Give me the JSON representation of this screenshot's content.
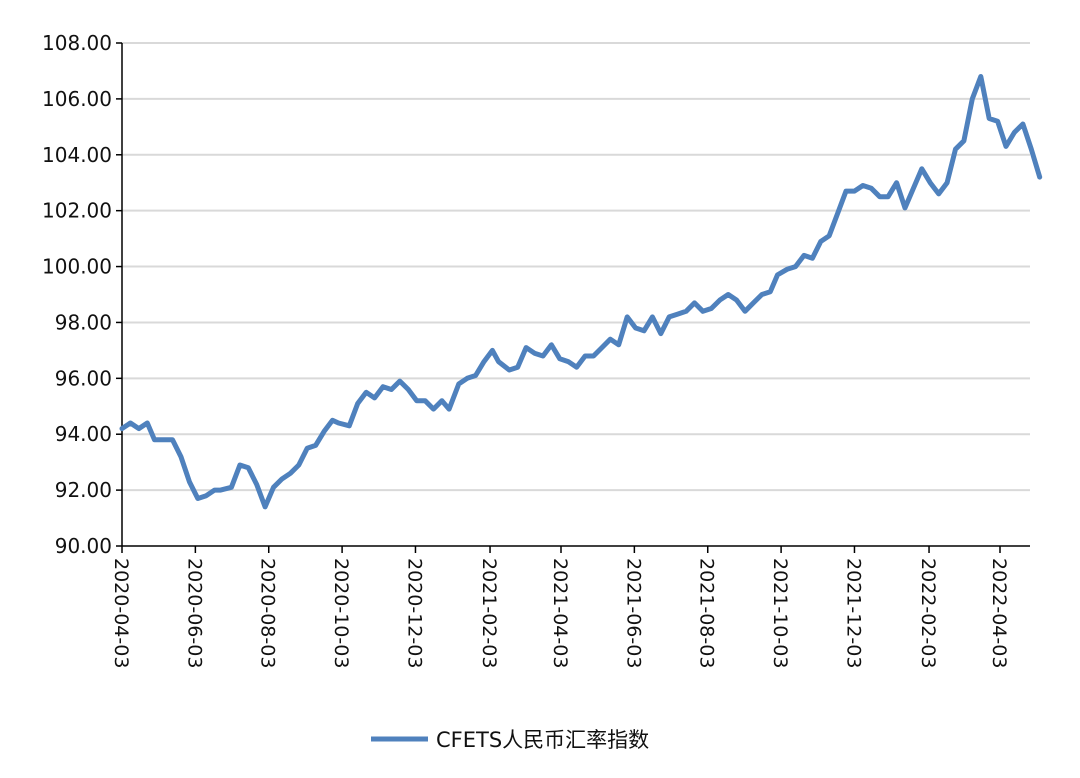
{
  "chart_data": {
    "type": "line",
    "title": "",
    "xlabel": "",
    "ylabel": "",
    "ylim": [
      90,
      108
    ],
    "y_ticks": [
      "90.00",
      "92.00",
      "94.00",
      "96.00",
      "98.00",
      "100.00",
      "102.00",
      "104.00",
      "106.00",
      "108.00"
    ],
    "x_ticks": [
      "2020-04-03",
      "2020-06-03",
      "2020-08-03",
      "2020-10-03",
      "2020-12-03",
      "2021-02-03",
      "2021-04-03",
      "2021-06-03",
      "2021-08-03",
      "2021-10-03",
      "2021-12-03",
      "2022-02-03",
      "2022-04-03"
    ],
    "grid": "horizontal",
    "legend_position": "bottom-center",
    "series": [
      {
        "name": "CFETS人民币汇率指数",
        "color": "#4f81bd",
        "x": [
          "2020-04-03",
          "2020-04-10",
          "2020-04-17",
          "2020-04-24",
          "2020-04-30",
          "2020-05-08",
          "2020-05-15",
          "2020-05-22",
          "2020-05-29",
          "2020-06-05",
          "2020-06-12",
          "2020-06-19",
          "2020-06-24",
          "2020-07-03",
          "2020-07-10",
          "2020-07-17",
          "2020-07-24",
          "2020-07-31",
          "2020-08-07",
          "2020-08-14",
          "2020-08-21",
          "2020-08-28",
          "2020-09-04",
          "2020-09-11",
          "2020-09-18",
          "2020-09-25",
          "2020-09-30",
          "2020-10-09",
          "2020-10-16",
          "2020-10-23",
          "2020-10-30",
          "2020-11-06",
          "2020-11-13",
          "2020-11-20",
          "2020-11-27",
          "2020-12-04",
          "2020-12-11",
          "2020-12-18",
          "2020-12-25",
          "2020-12-31",
          "2021-01-08",
          "2021-01-15",
          "2021-01-22",
          "2021-01-29",
          "2021-02-05",
          "2021-02-10",
          "2021-02-19",
          "2021-02-26",
          "2021-03-05",
          "2021-03-12",
          "2021-03-19",
          "2021-03-26",
          "2021-04-02",
          "2021-04-09",
          "2021-04-16",
          "2021-04-23",
          "2021-04-30",
          "2021-05-07",
          "2021-05-14",
          "2021-05-21",
          "2021-05-28",
          "2021-06-04",
          "2021-06-11",
          "2021-06-18",
          "2021-06-25",
          "2021-07-02",
          "2021-07-09",
          "2021-07-16",
          "2021-07-23",
          "2021-07-30",
          "2021-08-06",
          "2021-08-13",
          "2021-08-20",
          "2021-08-27",
          "2021-09-03",
          "2021-09-10",
          "2021-09-17",
          "2021-09-24",
          "2021-09-30",
          "2021-10-08",
          "2021-10-15",
          "2021-10-22",
          "2021-10-29",
          "2021-11-05",
          "2021-11-12",
          "2021-11-19",
          "2021-11-26",
          "2021-12-03",
          "2021-12-10",
          "2021-12-17",
          "2021-12-24",
          "2021-12-31",
          "2022-01-07",
          "2022-01-14",
          "2022-01-21",
          "2022-01-28",
          "2022-02-04",
          "2022-02-11",
          "2022-02-18",
          "2022-02-25",
          "2022-03-04",
          "2022-03-11",
          "2022-03-18",
          "2022-03-25",
          "2022-04-01",
          "2022-04-08",
          "2022-04-15",
          "2022-04-22",
          "2022-04-29",
          "2022-05-06"
        ],
        "y": [
          94.2,
          94.4,
          94.2,
          94.4,
          93.8,
          93.8,
          93.8,
          93.2,
          92.3,
          91.7,
          91.8,
          92.0,
          92.0,
          92.1,
          92.9,
          92.8,
          92.2,
          91.4,
          92.1,
          92.4,
          92.6,
          92.9,
          93.5,
          93.6,
          94.1,
          94.5,
          94.4,
          94.3,
          95.1,
          95.5,
          95.3,
          95.7,
          95.6,
          95.9,
          95.6,
          95.2,
          95.2,
          94.9,
          95.2,
          94.9,
          95.8,
          96.0,
          96.1,
          96.6,
          97.0,
          96.6,
          96.3,
          96.4,
          97.1,
          96.9,
          96.8,
          97.2,
          96.7,
          96.6,
          96.4,
          96.8,
          96.8,
          97.1,
          97.4,
          97.2,
          98.2,
          97.8,
          97.7,
          98.2,
          97.6,
          98.2,
          98.3,
          98.4,
          98.7,
          98.4,
          98.5,
          98.8,
          99.0,
          98.8,
          98.4,
          98.7,
          99.0,
          99.1,
          99.7,
          99.9,
          100.0,
          100.4,
          100.3,
          100.9,
          101.1,
          101.9,
          102.7,
          102.7,
          102.9,
          102.8,
          102.5,
          102.5,
          103.0,
          102.1,
          102.8,
          103.5,
          103.0,
          102.6,
          103.0,
          104.2,
          104.5,
          106.0,
          106.8,
          105.3,
          105.2,
          104.3,
          104.8,
          105.1,
          104.2,
          103.2
        ]
      }
    ]
  }
}
